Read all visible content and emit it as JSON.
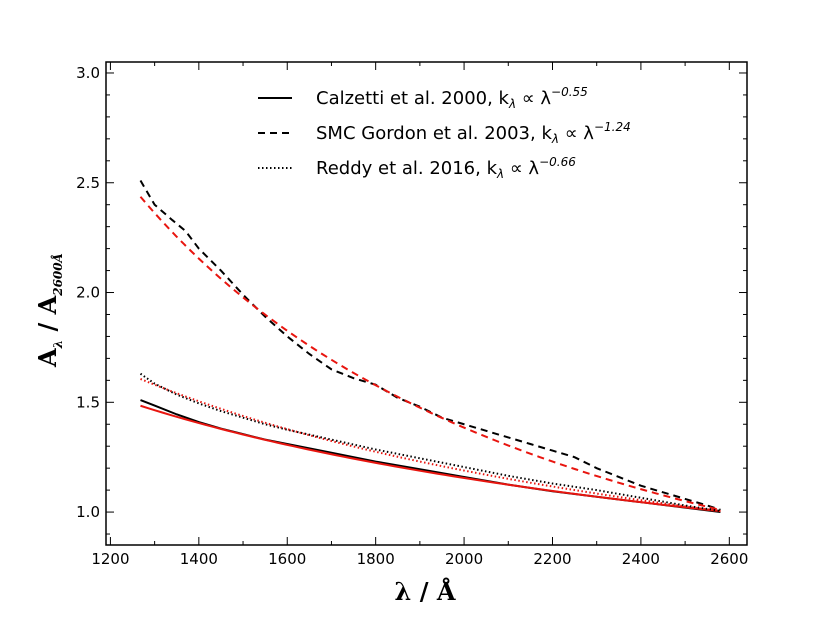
{
  "chart_data": {
    "type": "line",
    "title": "",
    "xlabel": "λ / Å",
    "ylabel_main": "A",
    "ylabel_sub1": "λ",
    "ylabel_mid": " / A",
    "ylabel_sub2": "2600Å",
    "xlim": [
      1190,
      2640
    ],
    "ylim": [
      0.85,
      3.05
    ],
    "xticks": [
      1200,
      1400,
      1600,
      1800,
      2000,
      2200,
      2400,
      2600
    ],
    "xtick_labels": [
      "1200",
      "1400",
      "1600",
      "1800",
      "2000",
      "2200",
      "2400",
      "2600"
    ],
    "yticks": [
      1.0,
      1.5,
      2.0,
      2.5,
      3.0
    ],
    "ytick_labels": [
      "1.0",
      "1.5",
      "2.0",
      "2.5",
      "3.0"
    ],
    "legend_position": "top-right",
    "legend": [
      {
        "name": "calzetti",
        "text": "Calzetti et al. 2000, k",
        "sub": "λ",
        "mid": " ∝ λ",
        "sup": "−0.55",
        "style": "solid"
      },
      {
        "name": "smc",
        "text": "SMC Gordon et al. 2003,  k",
        "sub": "λ",
        "mid": " ∝ λ",
        "sup": "−1.24",
        "style": "dashed"
      },
      {
        "name": "reddy",
        "text": "Reddy et al. 2016, k",
        "sub": "λ",
        "mid": " ∝ λ",
        "sup": "−0.66",
        "style": "dotted"
      }
    ],
    "colors": {
      "data": "#000000",
      "fit": "#e8150f"
    },
    "series": [
      {
        "name": "calzetti-data",
        "style": "solid",
        "color": "#000000",
        "x": [
          1268,
          1300,
          1350,
          1400,
          1450,
          1500,
          1550,
          1600,
          1700,
          1800,
          1900,
          2000,
          2100,
          2200,
          2300,
          2400,
          2500,
          2580
        ],
        "y": [
          1.51,
          1.485,
          1.445,
          1.41,
          1.38,
          1.355,
          1.33,
          1.31,
          1.27,
          1.23,
          1.195,
          1.16,
          1.125,
          1.095,
          1.07,
          1.045,
          1.02,
          1.0
        ]
      },
      {
        "name": "calzetti-fit",
        "style": "solid",
        "color": "#e8150f",
        "exponent": -0.55,
        "x0": 1268,
        "x1": 2580
      },
      {
        "name": "smc-data",
        "style": "dashed",
        "color": "#000000",
        "x": [
          1268,
          1300,
          1340,
          1370,
          1400,
          1450,
          1500,
          1550,
          1600,
          1650,
          1700,
          1750,
          1800,
          1850,
          1900,
          1950,
          2000,
          2050,
          2100,
          2150,
          2200,
          2250,
          2300,
          2350,
          2400,
          2450,
          2500,
          2550,
          2580
        ],
        "y": [
          2.51,
          2.4,
          2.33,
          2.28,
          2.2,
          2.1,
          1.99,
          1.89,
          1.8,
          1.72,
          1.65,
          1.61,
          1.58,
          1.52,
          1.48,
          1.43,
          1.4,
          1.37,
          1.34,
          1.31,
          1.28,
          1.25,
          1.2,
          1.16,
          1.12,
          1.09,
          1.06,
          1.03,
          1.01
        ]
      },
      {
        "name": "smc-fit",
        "style": "dashed",
        "color": "#e8150f",
        "exponent": -1.24,
        "x0": 1268,
        "x1": 2580
      },
      {
        "name": "reddy-data",
        "style": "dotted",
        "color": "#000000",
        "x": [
          1268,
          1300,
          1350,
          1400,
          1450,
          1500,
          1550,
          1600,
          1700,
          1800,
          1900,
          2000,
          2100,
          2200,
          2300,
          2400,
          2500,
          2580
        ],
        "y": [
          1.63,
          1.585,
          1.535,
          1.495,
          1.46,
          1.43,
          1.4,
          1.375,
          1.33,
          1.285,
          1.245,
          1.205,
          1.165,
          1.13,
          1.1,
          1.065,
          1.03,
          1.005
        ]
      },
      {
        "name": "reddy-fit",
        "style": "dotted",
        "color": "#e8150f",
        "exponent": -0.66,
        "x0": 1268,
        "x1": 2580
      }
    ]
  }
}
